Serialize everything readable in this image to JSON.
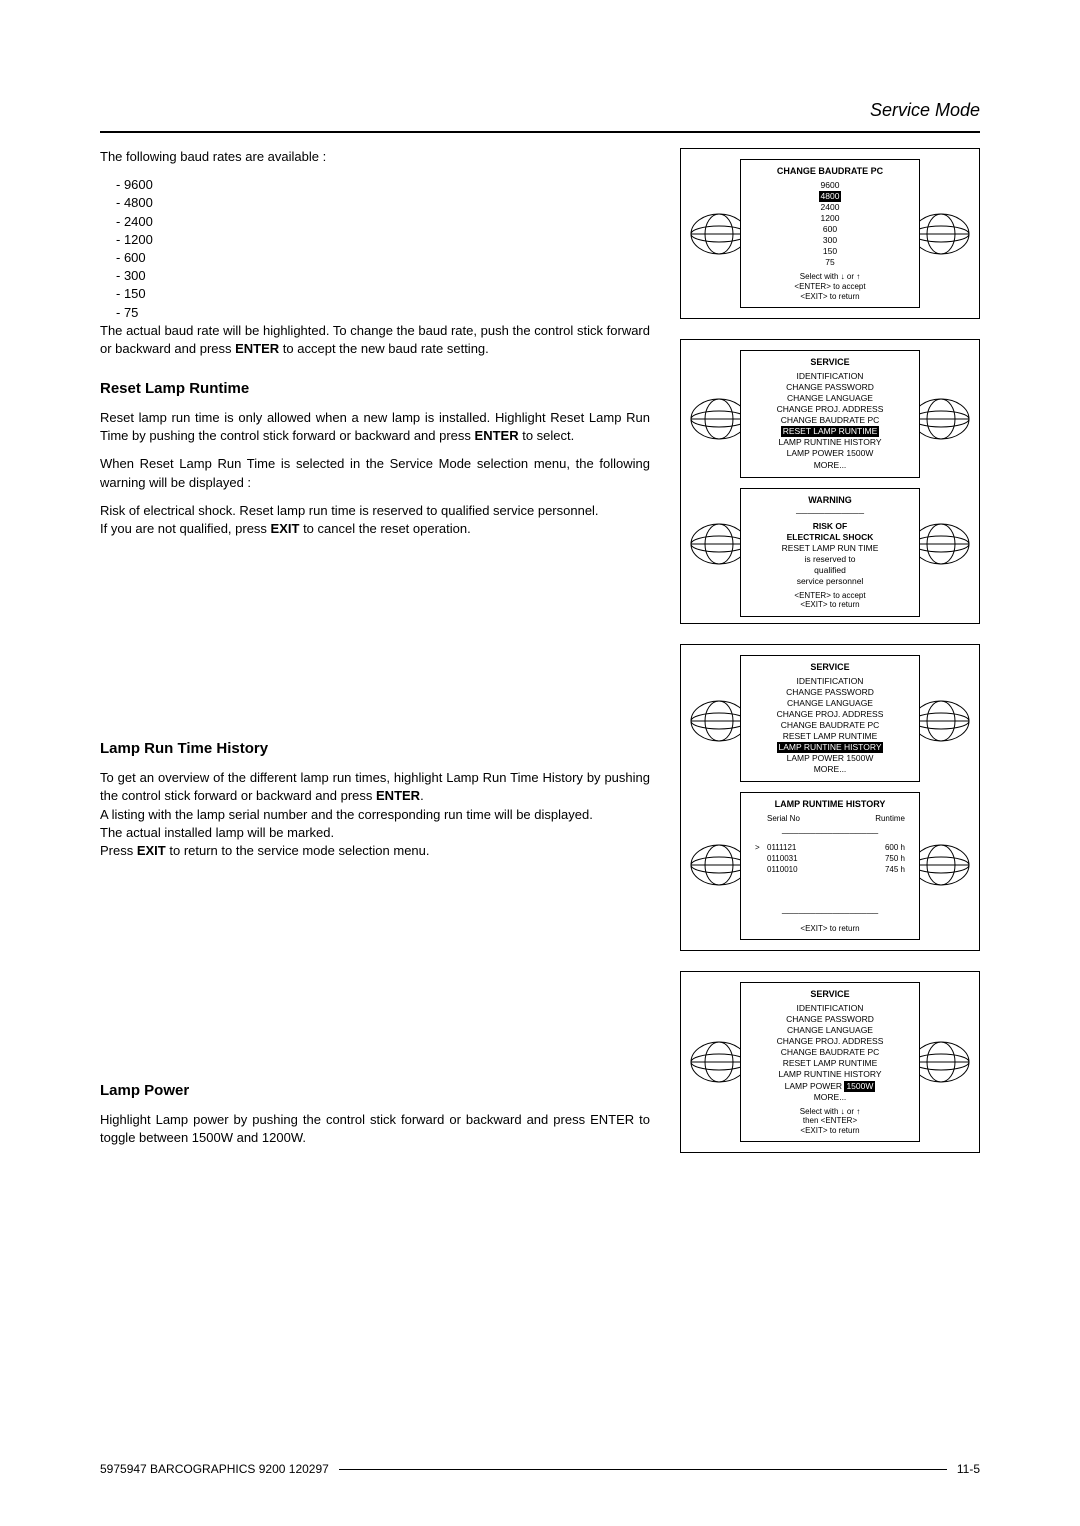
{
  "header": {
    "title": "Service Mode"
  },
  "baud": {
    "intro": "The following baud rates are available :",
    "rates": [
      "9600",
      "4800",
      "2400",
      "1200",
      "600",
      "300",
      "150",
      "75"
    ],
    "note1": "The actual baud rate will be highlighted.  To change the baud rate, push the control stick forward or backward and press ",
    "note1_bold": "ENTER",
    "note1_end": " to accept the new baud rate setting."
  },
  "reset": {
    "heading": "Reset Lamp Runtime",
    "p1a": "Reset lamp run time is only allowed when a new lamp is installed. Highlight Reset Lamp Run Time by pushing the control stick forward or backward and press ",
    "p1b": "ENTER",
    "p1c": " to select.",
    "p2": "When Reset Lamp Run Time is selected in the Service Mode selection menu, the following warning will be displayed :",
    "p3a": "Risk of electrical shock.  Reset lamp run time is reserved to qualified service personnel.",
    "p3b": "If you are not qualified, press ",
    "p3c": "EXIT",
    "p3d": " to cancel the reset operation."
  },
  "history": {
    "heading": "Lamp Run Time History",
    "p1a": "To get an overview of the different lamp run times, highlight Lamp Run Time History by pushing the control stick forward or backward and press ",
    "p1b": "ENTER",
    "p1c": ".",
    "p2": "A listing with the lamp serial number and the corresponding run time will be displayed.",
    "p3": "The actual installed lamp will be marked.",
    "p4a": "Press ",
    "p4b": "EXIT",
    "p4c": " to return to the service mode selection menu."
  },
  "power": {
    "heading": "Lamp Power",
    "p1": "Highlight Lamp power by pushing the control stick forward or backward and press ENTER to toggle between 1500W and 1200W."
  },
  "crt": {
    "baud_title": "CHANGE BAUDRATE PC",
    "baud_lines": [
      "9600",
      "2400",
      "1200",
      "600",
      "300",
      "150",
      "75"
    ],
    "baud_selected": "4800",
    "baud_foot1": "Select with  ↓  or ↑",
    "baud_foot2": "<ENTER> to accept",
    "baud_foot3": "<EXIT> to return",
    "svc_title": "SERVICE",
    "svc_lines": [
      "IDENTIFICATION",
      "CHANGE PASSWORD",
      "CHANGE LANGUAGE",
      "CHANGE PROJ. ADDRESS",
      "CHANGE BAUDRATE PC"
    ],
    "svc_sel_reset": "RESET LAMP RUNTIME",
    "svc_after_reset": [
      "LAMP RUNTINE HISTORY",
      "LAMP POWER   1500W",
      "MORE..."
    ],
    "warn_title": "WARNING",
    "warn_risk1": "RISK OF",
    "warn_risk2": "ELECTRICAL SHOCK",
    "warn_lines": [
      "RESET LAMP RUN TIME",
      "is reserved to",
      "qualified",
      "service personnel"
    ],
    "warn_foot1": "<ENTER> to accept",
    "warn_foot2": "<EXIT> to return",
    "hist_lines_before": [
      "IDENTIFICATION",
      "CHANGE PASSWORD",
      "CHANGE LANGUAGE",
      "CHANGE PROJ. ADDRESS",
      "CHANGE BAUDRATE PC",
      "RESET LAMP RUNTIME"
    ],
    "hist_sel": "LAMP RUNTINE HISTORY",
    "hist_after": [
      "LAMP POWER   1500W",
      "MORE..."
    ],
    "hist_box_title": "LAMP RUNTIME HISTORY",
    "hist_col1": "Serial No",
    "hist_col2": "Runtime",
    "hist_rows": [
      {
        "mark": ">",
        "sn": "0111121",
        "rt": "600 h"
      },
      {
        "mark": "",
        "sn": "0110031",
        "rt": "750 h"
      },
      {
        "mark": "",
        "sn": "0110010",
        "rt": "745 h"
      }
    ],
    "hist_foot": "<EXIT> to return",
    "pwr_lines_before": [
      "IDENTIFICATION",
      "CHANGE PASSWORD",
      "CHANGE LANGUAGE",
      "CHANGE PROJ. ADDRESS",
      "CHANGE BAUDRATE PC",
      "RESET LAMP RUNTIME",
      "LAMP RUNTINE HISTORY"
    ],
    "pwr_label": "LAMP POWER",
    "pwr_sel": "1500W",
    "pwr_after": [
      "MORE..."
    ],
    "pwr_foot1": "Select with   ↓  or  ↑",
    "pwr_foot2": "then <ENTER>",
    "pwr_foot3": "<EXIT> to return"
  },
  "footer": {
    "left": "5975947 BARCOGRAPHICS 9200 120297",
    "right": "11-5"
  }
}
